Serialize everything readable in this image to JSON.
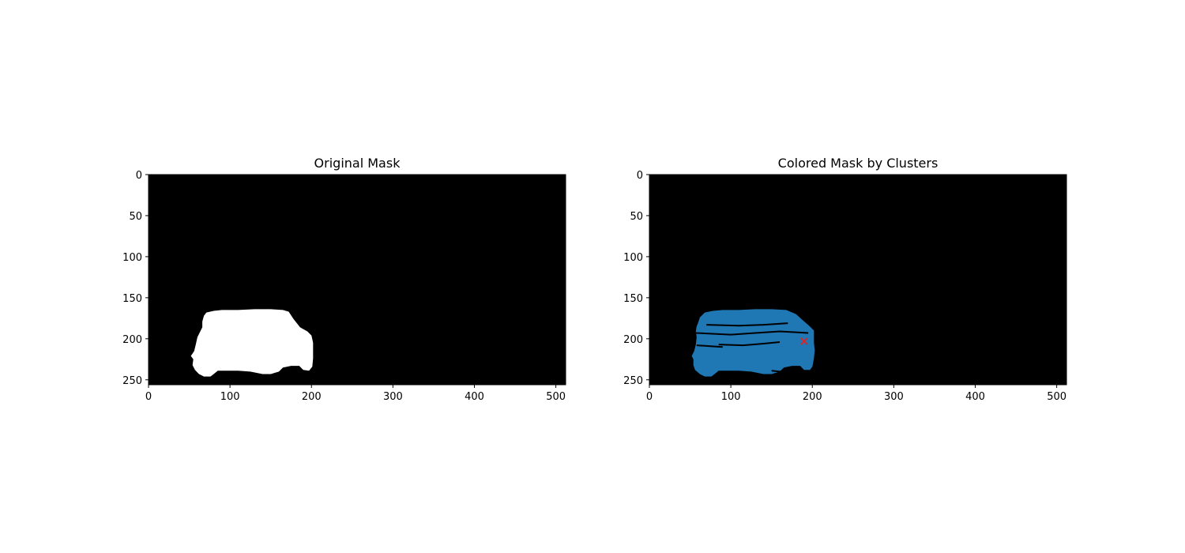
{
  "chart_data": [
    {
      "type": "image",
      "title": "Original Mask",
      "xlabel": "",
      "ylabel": "",
      "xlim": [
        0,
        512
      ],
      "ylim": [
        256,
        0
      ],
      "xticks": [
        0,
        100,
        200,
        300,
        400,
        500
      ],
      "yticks": [
        0,
        50,
        100,
        150,
        200,
        250
      ],
      "background_color": "#000000",
      "mask_color": "#ffffff",
      "mask_outline": [
        [
          68,
          246
        ],
        [
          62,
          243
        ],
        [
          57,
          238
        ],
        [
          54,
          232
        ],
        [
          55,
          225
        ],
        [
          52,
          221
        ],
        [
          56,
          215
        ],
        [
          58,
          207
        ],
        [
          60,
          198
        ],
        [
          63,
          192
        ],
        [
          66,
          186
        ],
        [
          66,
          179
        ],
        [
          68,
          172
        ],
        [
          71,
          168
        ],
        [
          80,
          166
        ],
        [
          90,
          165
        ],
        [
          110,
          165
        ],
        [
          130,
          164
        ],
        [
          150,
          164
        ],
        [
          165,
          165
        ],
        [
          172,
          167
        ],
        [
          178,
          176
        ],
        [
          186,
          186
        ],
        [
          195,
          191
        ],
        [
          200,
          196
        ],
        [
          202,
          205
        ],
        [
          202,
          214
        ],
        [
          202,
          224
        ],
        [
          201,
          234
        ],
        [
          197,
          239
        ],
        [
          190,
          238
        ],
        [
          185,
          233
        ],
        [
          175,
          233
        ],
        [
          165,
          235
        ],
        [
          160,
          240
        ],
        [
          150,
          243
        ],
        [
          140,
          243
        ],
        [
          125,
          240
        ],
        [
          110,
          239
        ],
        [
          95,
          239
        ],
        [
          85,
          239
        ],
        [
          80,
          243
        ],
        [
          76,
          246
        ]
      ]
    },
    {
      "type": "image",
      "title": "Colored Mask by Clusters",
      "xlabel": "",
      "ylabel": "",
      "xlim": [
        0,
        512
      ],
      "ylim": [
        256,
        0
      ],
      "xticks": [
        0,
        100,
        200,
        300,
        400,
        500
      ],
      "yticks": [
        0,
        50,
        100,
        150,
        200,
        250
      ],
      "background_color": "#000000",
      "cluster_color": "#1f77b4",
      "cluster_outline": [
        [
          68,
          246
        ],
        [
          62,
          243
        ],
        [
          56,
          238
        ],
        [
          54,
          232
        ],
        [
          54,
          225
        ],
        [
          52,
          221
        ],
        [
          55,
          215
        ],
        [
          57,
          207
        ],
        [
          58,
          198
        ],
        [
          57,
          191
        ],
        [
          58,
          185
        ],
        [
          60,
          180
        ],
        [
          62,
          174
        ],
        [
          68,
          168
        ],
        [
          78,
          166
        ],
        [
          90,
          165
        ],
        [
          110,
          165
        ],
        [
          130,
          164
        ],
        [
          150,
          164
        ],
        [
          168,
          165
        ],
        [
          180,
          170
        ],
        [
          189,
          178
        ],
        [
          196,
          184
        ],
        [
          202,
          190
        ],
        [
          202,
          196
        ],
        [
          202,
          205
        ],
        [
          203,
          214
        ],
        [
          202,
          224
        ],
        [
          200,
          234
        ],
        [
          197,
          238
        ],
        [
          190,
          238
        ],
        [
          185,
          233
        ],
        [
          175,
          233
        ],
        [
          165,
          235
        ],
        [
          160,
          240
        ],
        [
          150,
          243
        ],
        [
          140,
          243
        ],
        [
          125,
          240
        ],
        [
          110,
          239
        ],
        [
          95,
          239
        ],
        [
          85,
          239
        ],
        [
          80,
          243
        ],
        [
          76,
          246
        ]
      ],
      "dark_streaks": [
        [
          [
            57,
            193
          ],
          [
            100,
            195
          ],
          [
            130,
            193
          ],
          [
            160,
            191
          ],
          [
            195,
            193
          ]
        ],
        [
          [
            85,
            207
          ],
          [
            115,
            208
          ],
          [
            140,
            206
          ],
          [
            160,
            204
          ]
        ],
        [
          [
            70,
            183
          ],
          [
            110,
            184
          ],
          [
            140,
            183
          ],
          [
            170,
            181
          ]
        ],
        [
          [
            58,
            208
          ],
          [
            75,
            209
          ],
          [
            90,
            210
          ]
        ],
        [
          [
            150,
            239
          ],
          [
            160,
            240
          ],
          [
            170,
            238
          ]
        ]
      ],
      "center_marker": {
        "x": 190,
        "y": 203,
        "symbol": "x",
        "color": "#d62728"
      }
    }
  ]
}
